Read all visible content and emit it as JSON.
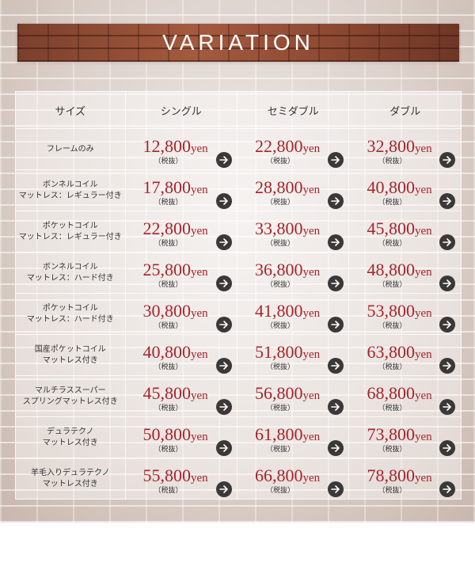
{
  "banner": {
    "title": "VARIATION"
  },
  "columns": [
    "サイズ",
    "シングル",
    "セミダブル",
    "ダブル"
  ],
  "currency_unit": "yen",
  "tax_note": "（税抜）",
  "colors": {
    "price": "#a8232b",
    "arrow_button": "#3b3837",
    "banner": "#8a4a34"
  },
  "rows": [
    {
      "name": [
        "フレームのみ"
      ],
      "prices": [
        "12,800",
        "22,800",
        "32,800"
      ]
    },
    {
      "name": [
        "ボンネルコイル",
        "マットレス：レギュラー付き"
      ],
      "prices": [
        "17,800",
        "28,800",
        "40,800"
      ]
    },
    {
      "name": [
        "ポケットコイル",
        "マットレス：レギュラー付き"
      ],
      "prices": [
        "22,800",
        "33,800",
        "45,800"
      ]
    },
    {
      "name": [
        "ボンネルコイル",
        "マットレス：ハード付き"
      ],
      "prices": [
        "25,800",
        "36,800",
        "48,800"
      ]
    },
    {
      "name": [
        "ポケットコイル",
        "マットレス：ハード付き"
      ],
      "prices": [
        "30,800",
        "41,800",
        "53,800"
      ]
    },
    {
      "name": [
        "国産ポケットコイル",
        "マットレス付き"
      ],
      "prices": [
        "40,800",
        "51,800",
        "63,800"
      ]
    },
    {
      "name": [
        "マルチラススーパー",
        "スプリングマットレス付き"
      ],
      "prices": [
        "45,800",
        "56,800",
        "68,800"
      ]
    },
    {
      "name": [
        "デュラテクノ",
        "マットレス付き"
      ],
      "prices": [
        "50,800",
        "61,800",
        "73,800"
      ]
    },
    {
      "name": [
        "羊毛入りデュラテクノ",
        "マットレス付き"
      ],
      "prices": [
        "55,800",
        "66,800",
        "78,800"
      ]
    }
  ]
}
